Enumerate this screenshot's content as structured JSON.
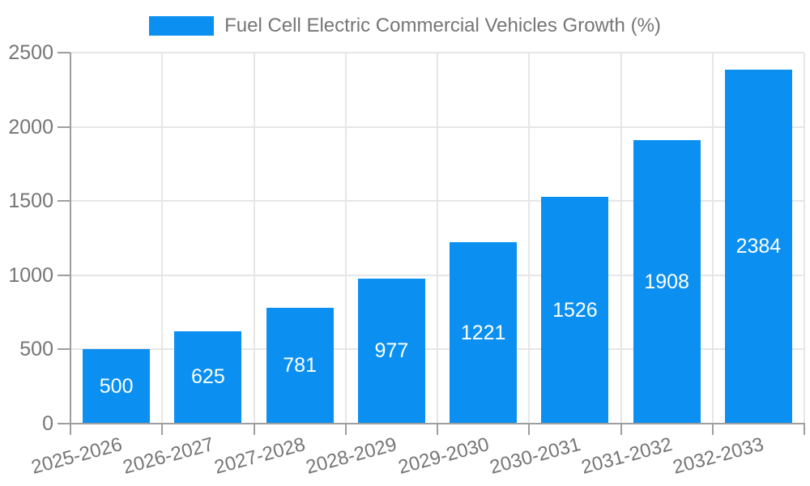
{
  "legend": {
    "label": "Fuel Cell Electric Commercial Vehicles Growth (%)"
  },
  "chart_data": {
    "type": "bar",
    "title": "Fuel Cell Electric Commercial Vehicles Growth (%)",
    "categories": [
      "2025-2026",
      "2026-2027",
      "2027-2028",
      "2028-2029",
      "2029-2030",
      "2030-2031",
      "2031-2032",
      "2032-2033"
    ],
    "values": [
      500,
      625,
      781,
      977,
      1221,
      1526,
      1908,
      2384
    ],
    "value_labels": [
      "500",
      "625",
      "781",
      "977",
      "1221",
      "1526",
      "1908",
      "2384"
    ],
    "xlabel": "",
    "ylabel": "",
    "ylim": [
      0,
      2500
    ],
    "yticks": [
      0,
      500,
      1000,
      1500,
      2000,
      2500
    ],
    "grid": true,
    "legend_position": "top-center",
    "bar_labels_inside": true,
    "x_label_rotation_deg": -15,
    "colors": {
      "bar": "#0b90f1",
      "value_label": "#ffffff",
      "gridline": "#e6e6e6",
      "axis_line": "#9e9e9e",
      "tick_text": "#757575",
      "legend_text": "#757575",
      "background": "#ffffff"
    }
  }
}
